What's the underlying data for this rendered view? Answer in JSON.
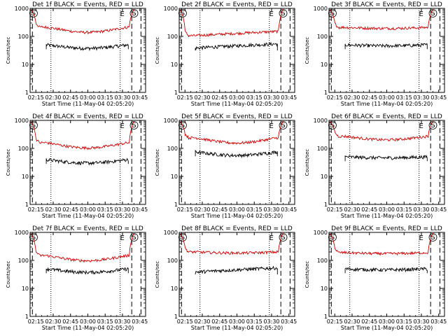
{
  "chart_data": [
    {
      "type": "line",
      "title": "Det 1f BLACK = Events, RED = LLD",
      "xlabel": "Start Time (11-May-04 02:05:20)",
      "ylabel": "Counts/sec",
      "yscale": "log",
      "ylim": [
        1,
        1000
      ],
      "yticks": [
        "1",
        "10",
        "100",
        "1000"
      ],
      "xticks": [
        "02:15",
        "02:30",
        "02:45",
        "03:00",
        "03:15",
        "03:30",
        "03:45"
      ],
      "markers": [
        "S",
        "E",
        "S"
      ],
      "series": [
        {
          "name": "Events",
          "color": "#000000",
          "level": 50,
          "shape": "bowl"
        },
        {
          "name": "LLD",
          "color": "#cc0000",
          "level": 215,
          "shape": "bowl"
        }
      ]
    },
    {
      "type": "line",
      "title": "Det 2f BLACK = Events, RED = LLD",
      "xlabel": "Start Time (11-May-04 02:05:20)",
      "ylabel": "Counts/sec",
      "yscale": "log",
      "ylim": [
        1,
        1000
      ],
      "yticks": [
        "1",
        "10",
        "100",
        "1000"
      ],
      "xticks": [
        "02:15",
        "02:30",
        "02:45",
        "03:00",
        "03:15",
        "03:30",
        "03:45"
      ],
      "markers": [
        "S",
        "E",
        "S"
      ],
      "series": [
        {
          "name": "Events",
          "color": "#000000",
          "level": 45,
          "shape": "rise"
        },
        {
          "name": "LLD",
          "color": "#cc0000",
          "level": 125,
          "shape": "rise"
        }
      ]
    },
    {
      "type": "line",
      "title": "Det 3f BLACK = Events, RED = LLD",
      "xlabel": "Start Time (11-May-04 02:05:20)",
      "ylabel": "Counts/sec",
      "yscale": "log",
      "ylim": [
        1,
        1000
      ],
      "yticks": [
        "1",
        "10",
        "100",
        "1000"
      ],
      "xticks": [
        "02:15",
        "02:30",
        "02:45",
        "03:00",
        "03:15",
        "03:30",
        "03:45"
      ],
      "markers": [
        "S",
        "E",
        "S"
      ],
      "series": [
        {
          "name": "Events",
          "color": "#000000",
          "level": 50,
          "shape": "flat"
        },
        {
          "name": "LLD",
          "color": "#cc0000",
          "level": 210,
          "shape": "flat"
        }
      ]
    },
    {
      "type": "line",
      "title": "Det 4f BLACK = Events, RED = LLD",
      "xlabel": "Start Time (11-May-04 02:05:20)",
      "ylabel": "Counts/sec",
      "yscale": "log",
      "ylim": [
        1,
        1000
      ],
      "yticks": [
        "1",
        "10",
        "100",
        "1000"
      ],
      "xticks": [
        "02:15",
        "02:30",
        "02:45",
        "03:00",
        "03:15",
        "03:30",
        "03:45"
      ],
      "markers": [
        "S",
        "E",
        "S"
      ],
      "series": [
        {
          "name": "Events",
          "color": "#000000",
          "level": 40,
          "shape": "bowl"
        },
        {
          "name": "LLD",
          "color": "#cc0000",
          "level": 160,
          "shape": "bowl"
        }
      ]
    },
    {
      "type": "line",
      "title": "Det 5f BLACK = Events, RED = LLD",
      "xlabel": "Start Time (11-May-04 02:05:20)",
      "ylabel": "Counts/sec",
      "yscale": "log",
      "ylim": [
        1,
        1000
      ],
      "yticks": [
        "1",
        "10",
        "100",
        "1000"
      ],
      "xticks": [
        "02:15",
        "02:30",
        "02:45",
        "03:00",
        "03:15",
        "03:30",
        "03:45"
      ],
      "markers": [
        "S",
        "E",
        "S"
      ],
      "series": [
        {
          "name": "Events",
          "color": "#000000",
          "level": 75,
          "shape": "bowl"
        },
        {
          "name": "LLD",
          "color": "#cc0000",
          "level": 240,
          "shape": "bowl"
        }
      ]
    },
    {
      "type": "line",
      "title": "Det 6f BLACK = Events, RED = LLD",
      "xlabel": "Start Time (11-May-04 02:05:20)",
      "ylabel": "Counts/sec",
      "yscale": "log",
      "ylim": [
        1,
        1000
      ],
      "yticks": [
        "1",
        "10",
        "100",
        "1000"
      ],
      "xticks": [
        "02:15",
        "02:30",
        "02:45",
        "03:00",
        "03:15",
        "03:30",
        "03:45"
      ],
      "markers": [
        "S",
        "E",
        "S"
      ],
      "series": [
        {
          "name": "Events",
          "color": "#000000",
          "level": 50,
          "shape": "flat"
        },
        {
          "name": "LLD",
          "color": "#cc0000",
          "level": 270,
          "shape": "dip"
        }
      ]
    },
    {
      "type": "line",
      "title": "Det 7f BLACK = Events, RED = LLD",
      "xlabel": "Start Time (11-May-04 02:05:20)",
      "ylabel": "Counts/sec",
      "yscale": "log",
      "ylim": [
        1,
        1000
      ],
      "yticks": [
        "1",
        "10",
        "100",
        "1000"
      ],
      "xticks": [
        "02:15",
        "02:30",
        "02:45",
        "03:00",
        "03:15",
        "03:30",
        "03:45"
      ],
      "markers": [
        "S",
        "E",
        "S"
      ],
      "series": [
        {
          "name": "Events",
          "color": "#000000",
          "level": 50,
          "shape": "bowl"
        },
        {
          "name": "LLD",
          "color": "#cc0000",
          "level": 150,
          "shape": "bowl"
        }
      ]
    },
    {
      "type": "line",
      "title": "Det 8f BLACK = Events, RED = LLD",
      "xlabel": "Start Time (11-May-04 02:05:20)",
      "ylabel": "Counts/sec",
      "yscale": "log",
      "ylim": [
        1,
        1000
      ],
      "yticks": [
        "1",
        "10",
        "100",
        "1000"
      ],
      "xticks": [
        "02:15",
        "02:30",
        "02:45",
        "03:00",
        "03:15",
        "03:30",
        "03:45"
      ],
      "markers": [
        "S",
        "E",
        "S"
      ],
      "series": [
        {
          "name": "Events",
          "color": "#000000",
          "level": 45,
          "shape": "rise"
        },
        {
          "name": "LLD",
          "color": "#cc0000",
          "level": 200,
          "shape": "flat"
        }
      ]
    },
    {
      "type": "line",
      "title": "Det 9f BLACK = Events, RED = LLD",
      "xlabel": "Start Time (11-May-04 02:05:20)",
      "ylabel": "Counts/sec",
      "yscale": "log",
      "ylim": [
        1,
        1000
      ],
      "yticks": [
        "1",
        "10",
        "100",
        "1000"
      ],
      "xticks": [
        "02:15",
        "02:30",
        "02:45",
        "03:00",
        "03:15",
        "03:30",
        "03:45"
      ],
      "markers": [
        "S",
        "E",
        "S"
      ],
      "series": [
        {
          "name": "Events",
          "color": "#000000",
          "level": 50,
          "shape": "flat"
        },
        {
          "name": "LLD",
          "color": "#cc0000",
          "level": 190,
          "shape": "flat"
        }
      ]
    }
  ]
}
